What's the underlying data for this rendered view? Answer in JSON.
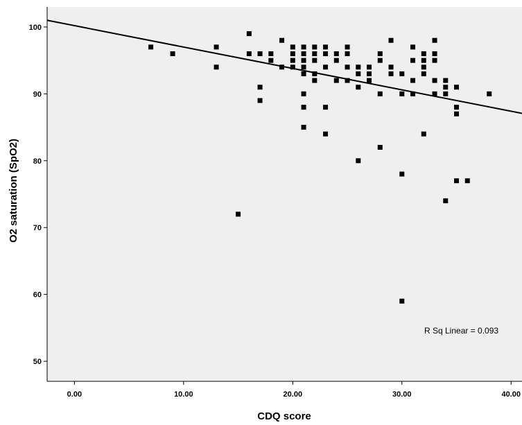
{
  "chart_data": {
    "type": "scatter",
    "title": "",
    "xlabel": "CDQ score",
    "ylabel": "O2 saturation (SpO2)",
    "xlim": [
      -2.5,
      41
    ],
    "ylim": [
      47,
      103
    ],
    "x_ticks": [
      0,
      10,
      20,
      30,
      40
    ],
    "x_tick_labels": [
      "0.00",
      "10.00",
      "20.00",
      "30.00",
      "40.00"
    ],
    "y_ticks": [
      50,
      60,
      70,
      80,
      90,
      100
    ],
    "y_tick_labels": [
      "50",
      "60",
      "70",
      "80",
      "90",
      "100"
    ],
    "grid": false,
    "legend": "none",
    "background_color": "#efefef",
    "marker_color": "#000000",
    "fit_line": {
      "type": "linear",
      "intercept": 100.2,
      "slope": -0.32
    },
    "annotation": "R Sq Linear = 0.093",
    "points": [
      [
        7,
        97
      ],
      [
        9,
        96
      ],
      [
        13,
        97
      ],
      [
        13,
        94
      ],
      [
        15,
        72
      ],
      [
        16,
        99
      ],
      [
        16,
        96
      ],
      [
        17,
        96
      ],
      [
        17,
        91
      ],
      [
        17,
        89
      ],
      [
        18,
        96
      ],
      [
        18,
        95
      ],
      [
        19,
        98
      ],
      [
        19,
        94
      ],
      [
        20,
        97
      ],
      [
        20,
        96
      ],
      [
        20,
        95
      ],
      [
        20,
        94
      ],
      [
        21,
        97
      ],
      [
        21,
        96
      ],
      [
        21,
        95
      ],
      [
        21,
        94
      ],
      [
        21,
        93
      ],
      [
        21,
        90
      ],
      [
        21,
        88
      ],
      [
        21,
        85
      ],
      [
        22,
        97
      ],
      [
        22,
        96
      ],
      [
        22,
        95
      ],
      [
        22,
        93
      ],
      [
        22,
        92
      ],
      [
        23,
        97
      ],
      [
        23,
        96
      ],
      [
        23,
        94
      ],
      [
        23,
        88
      ],
      [
        23,
        84
      ],
      [
        24,
        96
      ],
      [
        24,
        95
      ],
      [
        24,
        92
      ],
      [
        25,
        97
      ],
      [
        25,
        96
      ],
      [
        25,
        94
      ],
      [
        25,
        92
      ],
      [
        26,
        94
      ],
      [
        26,
        93
      ],
      [
        26,
        91
      ],
      [
        26,
        80
      ],
      [
        27,
        94
      ],
      [
        27,
        93
      ],
      [
        27,
        92
      ],
      [
        28,
        96
      ],
      [
        28,
        95
      ],
      [
        28,
        90
      ],
      [
        28,
        82
      ],
      [
        29,
        98
      ],
      [
        29,
        94
      ],
      [
        29,
        93
      ],
      [
        30,
        93
      ],
      [
        30,
        90
      ],
      [
        30,
        78
      ],
      [
        30,
        59
      ],
      [
        31,
        97
      ],
      [
        31,
        95
      ],
      [
        31,
        92
      ],
      [
        31,
        90
      ],
      [
        32,
        96
      ],
      [
        32,
        95
      ],
      [
        32,
        94
      ],
      [
        32,
        93
      ],
      [
        32,
        84
      ],
      [
        33,
        98
      ],
      [
        33,
        96
      ],
      [
        33,
        95
      ],
      [
        33,
        92
      ],
      [
        33,
        90
      ],
      [
        34,
        92
      ],
      [
        34,
        91
      ],
      [
        34,
        90
      ],
      [
        34,
        74
      ],
      [
        35,
        91
      ],
      [
        35,
        88
      ],
      [
        35,
        87
      ],
      [
        35,
        77
      ],
      [
        36,
        77
      ],
      [
        38,
        90
      ]
    ]
  }
}
